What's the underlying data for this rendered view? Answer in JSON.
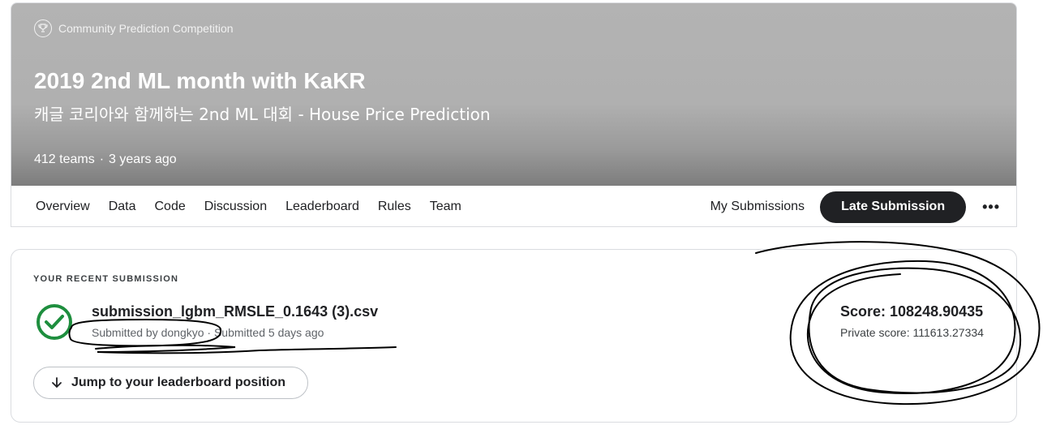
{
  "header": {
    "competition_type": "Community Prediction Competition",
    "title": "2019 2nd ML month with KaKR",
    "subtitle": "캐글 코리아와 함께하는 2nd ML 대회 - House Price Prediction",
    "teams": "412 teams",
    "separator": "·",
    "age": "3 years ago"
  },
  "nav": {
    "tabs": [
      "Overview",
      "Data",
      "Code",
      "Discussion",
      "Leaderboard",
      "Rules",
      "Team"
    ],
    "my_submissions": "My Submissions",
    "late_submission": "Late Submission",
    "more": "•••"
  },
  "submission": {
    "section_label": "YOUR RECENT SUBMISSION",
    "file_name": "submission_lgbm_RMSLE_0.1643 (3).csv",
    "meta": "Submitted by dongkyo · Submitted 5 days ago",
    "jump_label": "Jump to your leaderboard position",
    "score": "Score: 108248.90435",
    "private_score": "Private score: 111613.27334"
  },
  "icons": {
    "trophy": "trophy-icon",
    "check": "check-circle-icon",
    "arrow": "arrow-down-icon",
    "more": "more-horizontal-icon"
  },
  "colors": {
    "success": "#1e8e3e",
    "primary_button": "#202124"
  }
}
